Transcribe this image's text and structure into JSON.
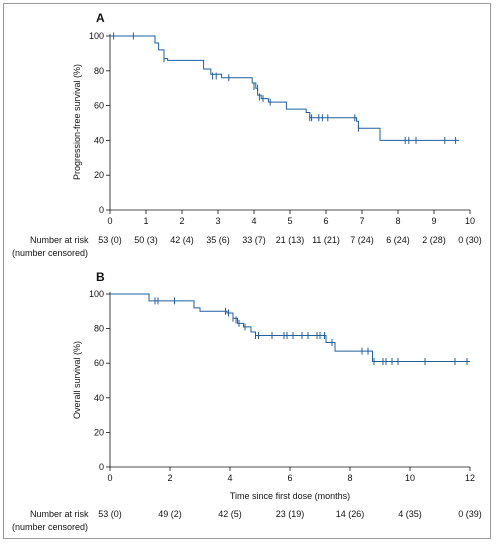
{
  "chart_data": [
    {
      "type": "line",
      "panel": "A",
      "ylabel": "Progression-free survival (%)",
      "xlabel": "",
      "ylim": [
        0,
        100
      ],
      "xlim": [
        0,
        10
      ],
      "yticks": [
        0,
        20,
        40,
        60,
        80,
        100
      ],
      "xticks": [
        0,
        1,
        2,
        3,
        4,
        5,
        6,
        7,
        8,
        9,
        10
      ],
      "series": [
        {
          "color": "#1f5fa0",
          "steps": [
            [
              0,
              100
            ],
            [
              1.25,
              96
            ],
            [
              1.35,
              92
            ],
            [
              1.5,
              87
            ],
            [
              1.6,
              86
            ],
            [
              2.6,
              81
            ],
            [
              2.8,
              78
            ],
            [
              3.1,
              76
            ],
            [
              3.95,
              73
            ],
            [
              4.05,
              70
            ],
            [
              4.1,
              66
            ],
            [
              4.2,
              64
            ],
            [
              4.4,
              62
            ],
            [
              4.9,
              58
            ],
            [
              5.45,
              56
            ],
            [
              5.55,
              53
            ],
            [
              6.85,
              51
            ],
            [
              6.9,
              47
            ],
            [
              7.5,
              40
            ],
            [
              9.7,
              40
            ]
          ],
          "censored": [
            [
              0.1,
              100
            ],
            [
              0.65,
              100
            ],
            [
              1.5,
              87
            ],
            [
              2.85,
              77
            ],
            [
              2.95,
              77
            ],
            [
              3.3,
              76
            ],
            [
              4.0,
              71
            ],
            [
              4.1,
              70
            ],
            [
              4.15,
              65
            ],
            [
              4.25,
              64
            ],
            [
              4.45,
              62
            ],
            [
              5.55,
              53
            ],
            [
              5.6,
              53
            ],
            [
              5.8,
              53
            ],
            [
              5.9,
              53
            ],
            [
              6.05,
              53
            ],
            [
              6.8,
              53
            ],
            [
              6.9,
              47
            ],
            [
              8.2,
              40
            ],
            [
              8.3,
              40
            ],
            [
              8.5,
              40
            ],
            [
              9.3,
              40
            ],
            [
              9.6,
              40
            ]
          ]
        }
      ],
      "at_risk": {
        "label": [
          "Number at risk",
          "(number censored)"
        ],
        "times": [
          0,
          1,
          2,
          3,
          4,
          5,
          6,
          7,
          8,
          9,
          10
        ],
        "values": [
          "53 (0)",
          "50 (3)",
          "42 (4)",
          "35 (6)",
          "33 (7)",
          "21 (13)",
          "11 (21)",
          "7 (24)",
          "6 (24)",
          "2 (28)",
          "0 (30)"
        ]
      }
    },
    {
      "type": "line",
      "panel": "B",
      "ylabel": "Overall survival (%)",
      "xlabel": "Time since first dose (months)",
      "ylim": [
        0,
        100
      ],
      "xlim": [
        0,
        12
      ],
      "yticks": [
        0,
        20,
        40,
        60,
        80,
        100
      ],
      "xticks": [
        0,
        2,
        4,
        6,
        8,
        10,
        12
      ],
      "series": [
        {
          "color": "#1f5fa0",
          "steps": [
            [
              0,
              100
            ],
            [
              1.3,
              96
            ],
            [
              2.8,
              92
            ],
            [
              3.0,
              90
            ],
            [
              3.9,
              89
            ],
            [
              4.1,
              86
            ],
            [
              4.25,
              83
            ],
            [
              4.45,
              81
            ],
            [
              4.7,
              78
            ],
            [
              4.85,
              76
            ],
            [
              7.2,
              72
            ],
            [
              7.5,
              67
            ],
            [
              8.75,
              61
            ],
            [
              12,
              61
            ]
          ],
          "censored": [
            [
              1.5,
              96
            ],
            [
              1.6,
              96
            ],
            [
              2.15,
              96
            ],
            [
              3.85,
              90
            ],
            [
              3.95,
              89
            ],
            [
              4.1,
              86
            ],
            [
              4.2,
              85
            ],
            [
              4.3,
              83
            ],
            [
              4.5,
              81
            ],
            [
              4.85,
              76
            ],
            [
              4.95,
              76
            ],
            [
              5.4,
              76
            ],
            [
              5.8,
              76
            ],
            [
              5.9,
              76
            ],
            [
              6.1,
              76
            ],
            [
              6.4,
              76
            ],
            [
              6.6,
              76
            ],
            [
              6.9,
              76
            ],
            [
              7.0,
              76
            ],
            [
              7.15,
              76
            ],
            [
              7.4,
              72
            ],
            [
              8.4,
              67
            ],
            [
              8.6,
              67
            ],
            [
              8.8,
              61
            ],
            [
              9.1,
              61
            ],
            [
              9.2,
              61
            ],
            [
              9.4,
              61
            ],
            [
              9.6,
              61
            ],
            [
              10.5,
              61
            ],
            [
              11.5,
              61
            ],
            [
              11.9,
              61
            ]
          ]
        }
      ],
      "at_risk": {
        "label": [
          "Number at risk",
          "(number censored)"
        ],
        "times": [
          0,
          2,
          4,
          6,
          8,
          10,
          12
        ],
        "values": [
          "53 (0)",
          "49 (2)",
          "42 (5)",
          "23 (19)",
          "14 (26)",
          "4 (35)",
          "0 (39)"
        ]
      }
    }
  ]
}
